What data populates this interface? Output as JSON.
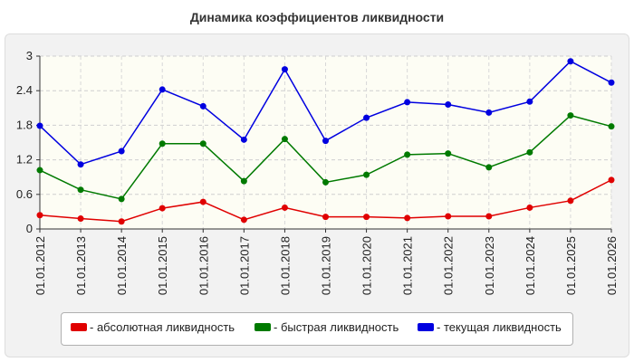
{
  "title": "Динамика коэффициентов ликвидности",
  "chart_data": {
    "type": "line",
    "title": "Динамика коэффициентов ликвидности",
    "xlabel": "",
    "ylabel": "",
    "ylim": [
      0,
      3
    ],
    "y_ticks": [
      "0",
      "0.6",
      "1.2",
      "1.8",
      "2.4",
      "3"
    ],
    "y_tick_values": [
      0,
      0.6,
      1.2,
      1.8,
      2.4,
      3
    ],
    "grid": true,
    "legend_position": "bottom",
    "categories": [
      "01.01.2012",
      "01.01.2013",
      "01.01.2014",
      "01.01.2015",
      "01.01.2016",
      "01.01.2017",
      "01.01.2018",
      "01.01.2019",
      "01.01.2020",
      "01.01.2021",
      "01.01.2022",
      "01.01.2023",
      "01.01.2024",
      "01.01.2025",
      "01.01.2026"
    ],
    "series": [
      {
        "name": "- абсолютная ликвидность",
        "color": "#e00000",
        "values": [
          0.24,
          0.18,
          0.13,
          0.36,
          0.47,
          0.16,
          0.37,
          0.21,
          0.21,
          0.19,
          0.22,
          0.22,
          0.37,
          0.49,
          0.85
        ]
      },
      {
        "name": "- быстрая ликвидность",
        "color": "#007a00",
        "values": [
          1.02,
          0.68,
          0.52,
          1.48,
          1.48,
          0.83,
          1.56,
          0.81,
          0.94,
          1.29,
          1.31,
          1.07,
          1.33,
          1.97,
          1.78
        ]
      },
      {
        "name": "- текущая ликвидность",
        "color": "#0000e0",
        "values": [
          1.79,
          1.12,
          1.35,
          2.42,
          2.13,
          1.55,
          2.77,
          1.53,
          1.93,
          2.2,
          2.16,
          2.02,
          2.21,
          2.91,
          2.54
        ]
      }
    ]
  }
}
